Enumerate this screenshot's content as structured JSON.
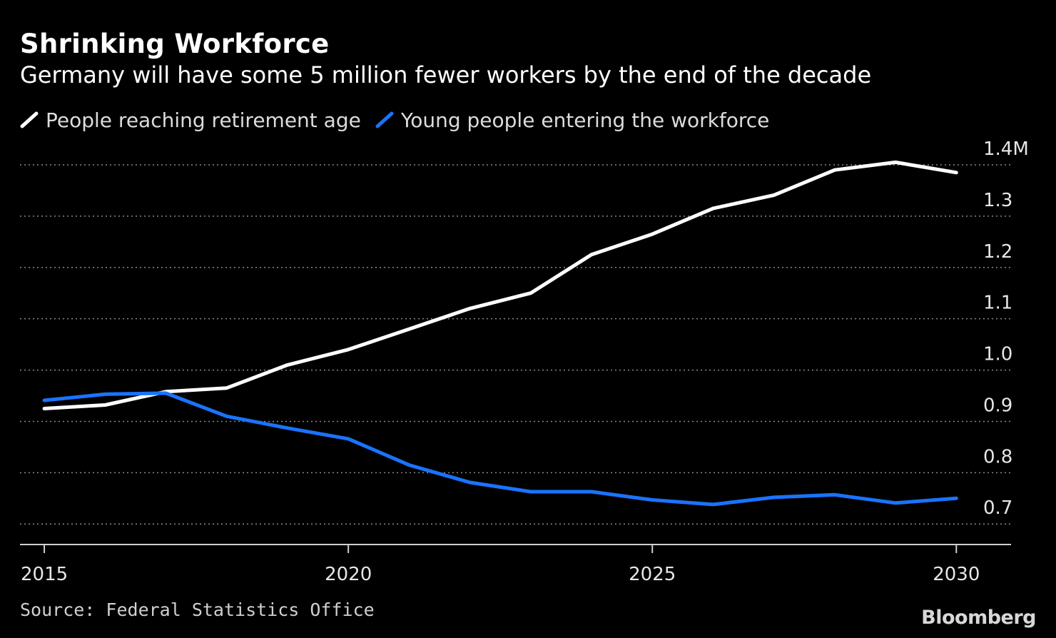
{
  "header": {
    "title": "Shrinking Workforce",
    "subtitle": "Germany will have some 5 million fewer workers by the end of the decade"
  },
  "legend": [
    {
      "label": "People reaching retirement age",
      "color": "#ffffff"
    },
    {
      "label": "Young people entering the workforce",
      "color": "#1a73ff"
    }
  ],
  "footer": {
    "source": "Source: Federal Statistics Office",
    "brand": "Bloomberg"
  },
  "chart_data": {
    "type": "line",
    "x": [
      2015,
      2016,
      2017,
      2018,
      2019,
      2020,
      2021,
      2022,
      2023,
      2024,
      2025,
      2026,
      2027,
      2028,
      2029,
      2030
    ],
    "series": [
      {
        "name": "People reaching retirement age",
        "color": "#ffffff",
        "values": [
          0.925,
          0.932,
          0.958,
          0.965,
          1.01,
          1.04,
          1.08,
          1.12,
          1.15,
          1.225,
          1.265,
          1.315,
          1.341,
          1.39,
          1.405,
          1.385
        ]
      },
      {
        "name": "Young people entering the workforce",
        "color": "#1a73ff",
        "values": [
          0.941,
          0.953,
          0.955,
          0.91,
          0.887,
          0.866,
          0.815,
          0.781,
          0.763,
          0.763,
          0.747,
          0.738,
          0.752,
          0.757,
          0.741,
          0.75
        ]
      }
    ],
    "y_ticks": [
      "0.7",
      "0.8",
      "0.9",
      "1.0",
      "1.1",
      "1.2",
      "1.3",
      "1.4M"
    ],
    "y_tick_values": [
      0.7,
      0.8,
      0.9,
      1.0,
      1.1,
      1.2,
      1.3,
      1.4
    ],
    "x_ticks": [
      "2015",
      "2020",
      "2025",
      "2030"
    ],
    "x_tick_values": [
      2015,
      2020,
      2025,
      2030
    ],
    "ylim": [
      0.66,
      1.4
    ],
    "xlim": [
      2014.6,
      2030.9
    ],
    "grid": true,
    "y_axis_side": "right",
    "legend_position": "top-left"
  }
}
